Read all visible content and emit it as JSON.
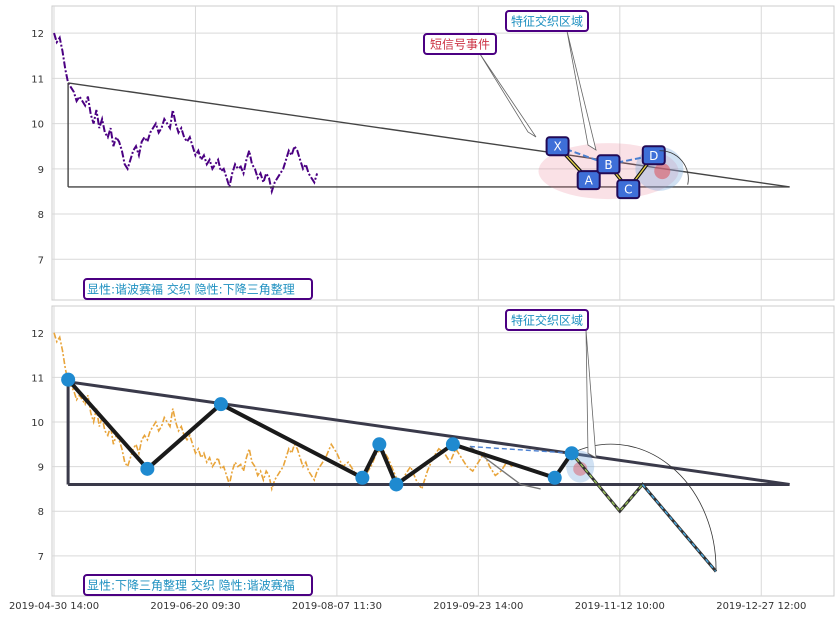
{
  "chart_data": [
    {
      "type": "line",
      "panel": "top",
      "title": "",
      "xlabel": "",
      "ylabel": "",
      "ylim": [
        6.1,
        12.6
      ],
      "yticks": [
        7,
        8,
        9,
        10,
        11,
        12
      ],
      "grid": true,
      "price_color": "#4b0082",
      "price_series": {
        "name": "",
        "points": [
          [
            0,
            12.0
          ],
          [
            1,
            11.8
          ],
          [
            2,
            11.9
          ],
          [
            3,
            11.6
          ],
          [
            4,
            11.2
          ],
          [
            5,
            10.9
          ],
          [
            6,
            10.8
          ],
          [
            7,
            10.7
          ],
          [
            8,
            10.5
          ],
          [
            9,
            10.6
          ],
          [
            10,
            10.5
          ],
          [
            11,
            10.4
          ],
          [
            12,
            10.6
          ],
          [
            13,
            10.2
          ],
          [
            14,
            10.0
          ],
          [
            15,
            10.3
          ],
          [
            16,
            9.9
          ],
          [
            17,
            10.1
          ],
          [
            18,
            9.8
          ],
          [
            19,
            9.7
          ],
          [
            20,
            9.9
          ],
          [
            21,
            9.5
          ],
          [
            22,
            9.7
          ],
          [
            23,
            9.6
          ],
          [
            24,
            9.4
          ],
          [
            25,
            9.1
          ],
          [
            26,
            9.0
          ],
          [
            27,
            9.2
          ],
          [
            28,
            9.4
          ],
          [
            29,
            9.5
          ],
          [
            30,
            9.3
          ],
          [
            31,
            9.6
          ],
          [
            32,
            9.7
          ],
          [
            33,
            9.6
          ],
          [
            34,
            9.8
          ],
          [
            35,
            9.9
          ],
          [
            36,
            10.0
          ],
          [
            37,
            9.8
          ],
          [
            38,
            9.9
          ],
          [
            39,
            10.1
          ],
          [
            40,
            10.0
          ],
          [
            41,
            9.9
          ],
          [
            42,
            10.3
          ],
          [
            43,
            10.0
          ],
          [
            44,
            9.8
          ],
          [
            45,
            9.9
          ],
          [
            46,
            9.7
          ],
          [
            47,
            9.6
          ],
          [
            48,
            9.7
          ],
          [
            49,
            9.5
          ],
          [
            50,
            9.3
          ],
          [
            51,
            9.4
          ],
          [
            52,
            9.2
          ],
          [
            53,
            9.3
          ],
          [
            54,
            9.1
          ],
          [
            55,
            9.2
          ],
          [
            56,
            9.0
          ],
          [
            57,
            9.1
          ],
          [
            58,
            9.2
          ],
          [
            59,
            8.95
          ],
          [
            60,
            9.0
          ],
          [
            61,
            8.8
          ],
          [
            62,
            8.6
          ],
          [
            63,
            8.9
          ],
          [
            64,
            9.1
          ],
          [
            65,
            9.0
          ],
          [
            66,
            9.05
          ],
          [
            67,
            8.9
          ],
          [
            68,
            9.2
          ],
          [
            69,
            9.4
          ],
          [
            70,
            9.1
          ],
          [
            71,
            9.0
          ],
          [
            72,
            8.8
          ],
          [
            73,
            8.9
          ],
          [
            74,
            8.7
          ],
          [
            75,
            8.9
          ],
          [
            76,
            8.8
          ],
          [
            77,
            8.5
          ],
          [
            78,
            8.7
          ],
          [
            79,
            8.8
          ],
          [
            80,
            8.9
          ],
          [
            81,
            9.0
          ],
          [
            82,
            9.2
          ],
          [
            83,
            9.4
          ],
          [
            84,
            9.3
          ],
          [
            85,
            9.5
          ],
          [
            86,
            9.4
          ],
          [
            87,
            9.2
          ],
          [
            88,
            9.0
          ],
          [
            89,
            9.1
          ],
          [
            90,
            8.9
          ],
          [
            91,
            8.8
          ],
          [
            92,
            8.7
          ],
          [
            93,
            8.9
          ]
        ]
      },
      "triangle": {
        "upper": [
          [
            5,
            10.9
          ],
          [
            260,
            8.6
          ]
        ],
        "lower": [
          [
            5,
            8.6
          ],
          [
            260,
            8.6
          ]
        ],
        "vertical": [
          [
            5,
            10.9
          ],
          [
            5,
            8.6
          ]
        ]
      },
      "pattern_points": [
        {
          "label": "X",
          "x": 178,
          "y": 9.5
        },
        {
          "label": "A",
          "x": 189,
          "y": 8.75
        },
        {
          "label": "B",
          "x": 196,
          "y": 9.1
        },
        {
          "label": "C",
          "x": 203,
          "y": 8.55
        },
        {
          "label": "D",
          "x": 212,
          "y": 9.3
        }
      ],
      "annotations": [
        {
          "text": "短信号事件",
          "color": "#cc3344"
        },
        {
          "text": "特征交织区域",
          "color": "#1e90c0"
        }
      ],
      "caption": "显性:谐波赛福 交织 隐性:下降三角整理"
    },
    {
      "type": "line",
      "panel": "bottom",
      "title": "",
      "xlabel": "",
      "ylabel": "",
      "ylim": [
        6.1,
        12.6
      ],
      "yticks": [
        7,
        8,
        9,
        10,
        11,
        12
      ],
      "grid": true,
      "price_color": "#e8a43a",
      "pattern_points": [
        {
          "x": 5,
          "y": 10.95
        },
        {
          "x": 33,
          "y": 8.95
        },
        {
          "x": 59,
          "y": 10.4
        },
        {
          "x": 109,
          "y": 8.75
        },
        {
          "x": 115,
          "y": 9.5
        },
        {
          "x": 121,
          "y": 8.6
        },
        {
          "x": 141,
          "y": 9.5
        },
        {
          "x": 177,
          "y": 8.75
        },
        {
          "x": 183,
          "y": 9.3
        }
      ],
      "projection": [
        [
          183,
          9.3
        ],
        [
          200,
          8.0
        ],
        [
          208,
          8.6
        ],
        [
          234,
          6.65
        ]
      ],
      "annotations": [
        {
          "text": "特征交织区域",
          "color": "#1e90c0"
        }
      ],
      "caption": "显性:下降三角整理 交织 隐性:谐波赛福"
    }
  ],
  "x_axis": {
    "range": [
      0,
      275
    ],
    "tick_positions": [
      0,
      50,
      100,
      150,
      200,
      250
    ],
    "tick_labels": [
      "2019-04-30 14:00",
      "2019-06-20 09:30",
      "2019-08-07 11:30",
      "2019-09-23 14:00",
      "2019-11-12 10:00",
      "2019-12-27 12:00"
    ]
  }
}
